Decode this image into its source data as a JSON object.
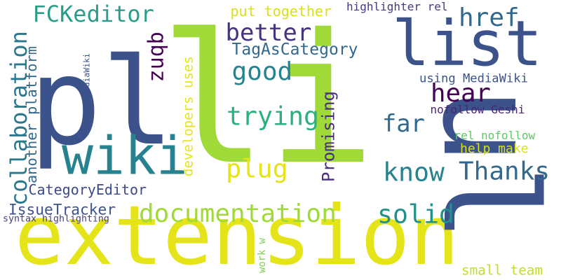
{
  "words": [
    {
      "text": "pl",
      "color": "#3b528b"
    },
    {
      "text": "li",
      "color": "#a0da39"
    },
    {
      "text": "extension",
      "color": "#e5e419"
    },
    {
      "text": "ul",
      "color": "#3b528b"
    },
    {
      "text": "list",
      "color": "#3b528b"
    },
    {
      "text": "wiki",
      "color": "#26828e"
    },
    {
      "text": "documentation",
      "color": "#a0da39"
    },
    {
      "text": "collaboration",
      "color": "#2a788e"
    },
    {
      "text": "FCKeditor",
      "color": "#2a9d8a"
    },
    {
      "text": "better",
      "color": "#46327e"
    },
    {
      "text": "good",
      "color": "#25848e"
    },
    {
      "text": "trying",
      "color": "#2cb17e"
    },
    {
      "text": "plug",
      "color": "#e5e419"
    },
    {
      "text": "solid",
      "color": "#21918c"
    },
    {
      "text": "know",
      "color": "#26828e"
    },
    {
      "text": "Thanks",
      "color": "#31688e"
    },
    {
      "text": "far",
      "color": "#31688e"
    },
    {
      "text": "hear",
      "color": "#440154"
    },
    {
      "text": "href",
      "color": "#31688e"
    },
    {
      "text": "qbnz",
      "color": "#440154"
    },
    {
      "text": "Promising",
      "color": "#472d7b"
    },
    {
      "text": "TagAsCategory",
      "color": "#31688e"
    },
    {
      "text": "developers uses",
      "color": "#e5e419"
    },
    {
      "text": "another platform",
      "color": "#31688e"
    },
    {
      "text": "CategoryEditor",
      "color": "#3e4989"
    },
    {
      "text": "IssueTracker",
      "color": "#3b528b"
    },
    {
      "text": "syntax highlighting",
      "color": "#433e85"
    },
    {
      "text": "put together",
      "color": "#d8e219"
    },
    {
      "text": "highlighter rel",
      "color": "#443983"
    },
    {
      "text": "using MediaWiki",
      "color": "#3b528b"
    },
    {
      "text": "nofollow Geshi",
      "color": "#482576"
    },
    {
      "text": "rel nofollow",
      "color": "#5ec962"
    },
    {
      "text": "help make",
      "color": "#d8e219"
    },
    {
      "text": "small team",
      "color": "#c2df23"
    },
    {
      "text": "w MediaWiki",
      "color": "#3b528b"
    },
    {
      "text": "work w",
      "color": "#7ad151"
    }
  ]
}
